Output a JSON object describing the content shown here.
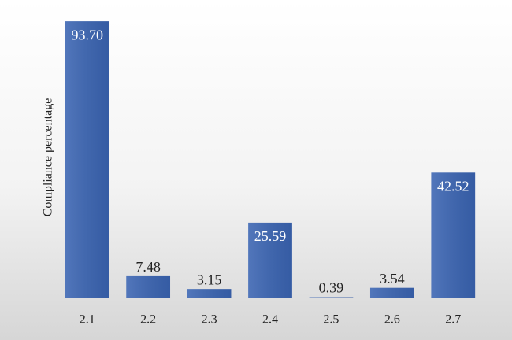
{
  "chart_data": {
    "type": "bar",
    "y_label": "Compliance percentage",
    "categories": [
      "2.1",
      "2.2",
      "2.3",
      "2.4",
      "2.5",
      "2.6",
      "2.7"
    ],
    "values": [
      93.7,
      7.48,
      3.15,
      25.59,
      0.39,
      3.54,
      42.52
    ],
    "value_labels": [
      "93.70",
      "7.48",
      "3.15",
      "25.59",
      "0.39",
      "3.54",
      "42.52"
    ],
    "color": "#3a64b2",
    "ylim": [
      0,
      94
    ]
  }
}
